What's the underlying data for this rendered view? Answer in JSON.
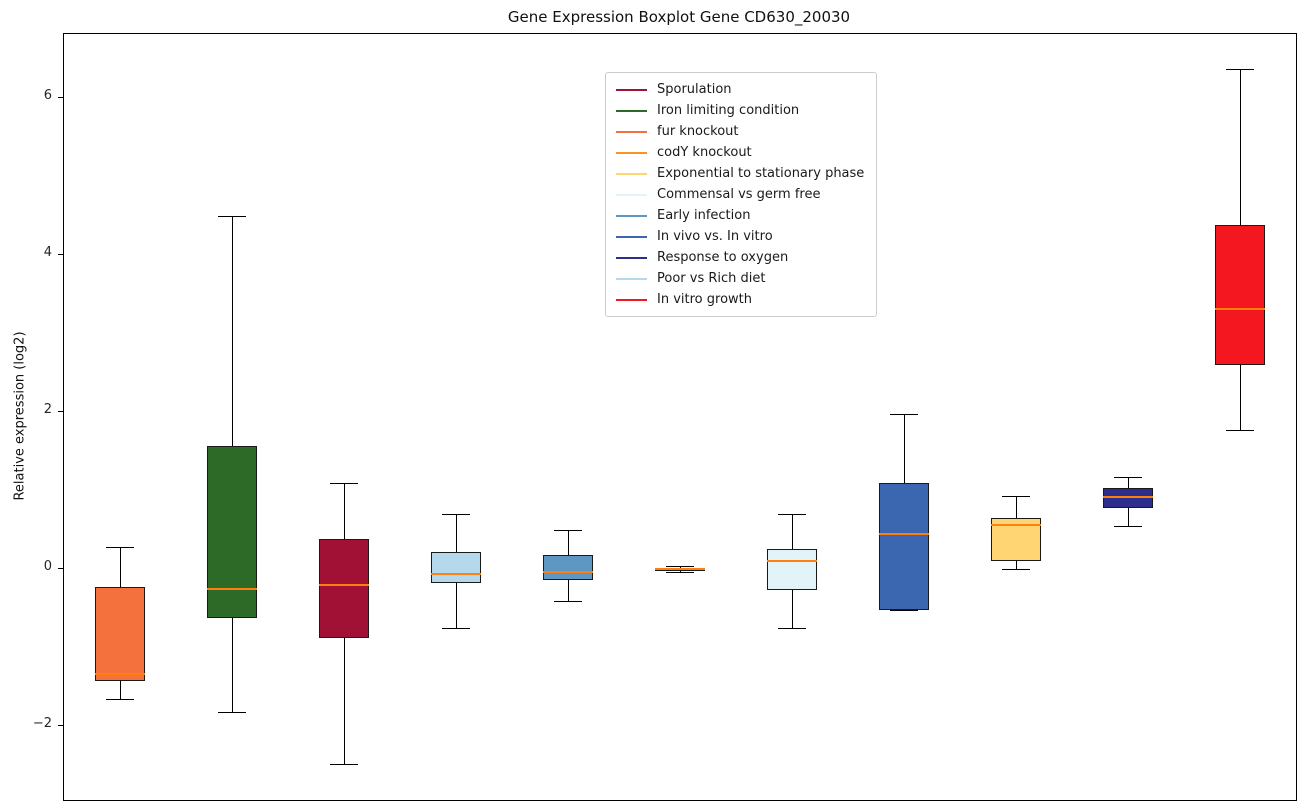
{
  "title": "Gene Expression Boxplot Gene CD630_20030",
  "ylabel": "Relative expression (log2)",
  "chart_data": {
    "type": "boxplot",
    "title": "Gene Expression Boxplot Gene CD630_20030",
    "xlabel": "",
    "ylabel": "Relative expression (log2)",
    "ylim": [
      -2.94,
      6.82
    ],
    "yticks": [
      -2,
      0,
      2,
      4,
      6
    ],
    "grid": false,
    "legend_position": "upper center-left",
    "median_color": "#ff7f0e",
    "whisker_color": "#000000",
    "legend": [
      {
        "label": "Sporulation",
        "color": "#a11035"
      },
      {
        "label": "Iron limiting condition",
        "color": "#2d6a27"
      },
      {
        "label": "fur knockout",
        "color": "#f4703c"
      },
      {
        "label": "codY knockout",
        "color": "#f79428"
      },
      {
        "label": "Exponential to stationary phase",
        "color": "#ffd573"
      },
      {
        "label": "Commensal vs germ free",
        "color": "#e3f4f9"
      },
      {
        "label": "Early infection",
        "color": "#5e97c3"
      },
      {
        "label": "In vivo vs. In vitro",
        "color": "#3a67b0"
      },
      {
        "label": "Response to oxygen",
        "color": "#2b2e8c"
      },
      {
        "label": "Poor vs Rich diet",
        "color": "#b5d9ec"
      },
      {
        "label": "In vitro growth",
        "color": "#f51720"
      }
    ],
    "boxes": [
      {
        "condition": "fur knockout",
        "color": "#f4703c",
        "whisker_low": -1.65,
        "q1": -1.42,
        "median": -1.33,
        "q3": -0.22,
        "whisker_high": 0.28
      },
      {
        "condition": "Iron limiting condition",
        "color": "#2d6a27",
        "whisker_low": -1.82,
        "q1": -0.62,
        "median": -0.25,
        "q3": 1.57,
        "whisker_high": 4.5
      },
      {
        "condition": "Sporulation",
        "color": "#a11035",
        "whisker_low": -2.48,
        "q1": -0.88,
        "median": -0.2,
        "q3": 0.38,
        "whisker_high": 1.1
      },
      {
        "condition": "Poor vs Rich diet",
        "color": "#b5d9ec",
        "whisker_low": -0.75,
        "q1": -0.18,
        "median": -0.06,
        "q3": 0.22,
        "whisker_high": 0.7
      },
      {
        "condition": "Early infection",
        "color": "#5e97c3",
        "whisker_low": -0.4,
        "q1": -0.14,
        "median": -0.03,
        "q3": 0.18,
        "whisker_high": 0.5
      },
      {
        "condition": "codY knockout",
        "color": "#f79428",
        "whisker_low": -0.04,
        "q1": -0.02,
        "median": 0.0,
        "q3": 0.02,
        "whisker_high": 0.04
      },
      {
        "condition": "Commensal vs germ free",
        "color": "#e3f4f9",
        "whisker_low": -0.75,
        "q1": -0.26,
        "median": 0.1,
        "q3": 0.26,
        "whisker_high": 0.7
      },
      {
        "condition": "In vivo vs. In vitro",
        "color": "#3a67b0",
        "whisker_low": -0.52,
        "q1": -0.52,
        "median": 0.45,
        "q3": 1.1,
        "whisker_high": 1.98
      },
      {
        "condition": "Exponential to stationary phase",
        "color": "#ffd573",
        "whisker_low": 0.0,
        "q1": 0.11,
        "median": 0.57,
        "q3": 0.65,
        "whisker_high": 0.93
      },
      {
        "condition": "Response to oxygen",
        "color": "#2b2e8c",
        "whisker_low": 0.55,
        "q1": 0.78,
        "median": 0.92,
        "q3": 1.03,
        "whisker_high": 1.17
      },
      {
        "condition": "In vitro growth",
        "color": "#f51720",
        "whisker_low": 1.78,
        "q1": 2.6,
        "median": 3.31,
        "q3": 4.39,
        "whisker_high": 6.37
      }
    ]
  }
}
